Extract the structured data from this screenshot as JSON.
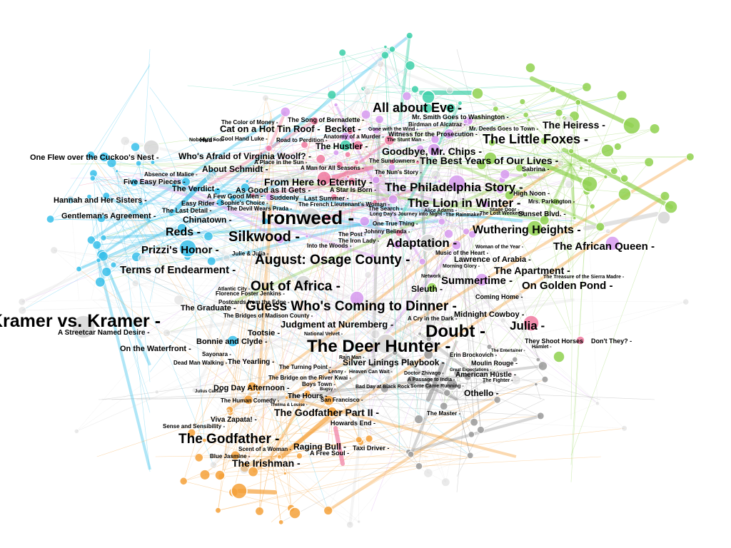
{
  "graph": {
    "palette": {
      "blue": "#38c0ea",
      "pink": "#f07aa0",
      "green": "#8fd14f",
      "orange": "#f5a13a",
      "purple": "#d79af0",
      "teal": "#3ccfa8",
      "gray": "#9a9a9a",
      "lightgray": "#d6d6d6"
    },
    "labels": [
      {
        "text": "Kramer vs. Kramer -",
        "tier": "xl"
      },
      {
        "text": "Ironweed -",
        "tier": "xl"
      },
      {
        "text": "The Deer Hunter -",
        "tier": "xl"
      },
      {
        "text": "Doubt -",
        "tier": "xl"
      },
      {
        "text": "The Godfather -",
        "tier": "l"
      },
      {
        "text": "Silkwood -",
        "tier": "l"
      },
      {
        "text": "August: Osage County -",
        "tier": "l"
      },
      {
        "text": "Out of Africa -",
        "tier": "l"
      },
      {
        "text": "Guess Who's Coming to Dinner -",
        "tier": "l"
      },
      {
        "text": "All about Eve -",
        "tier": "l"
      },
      {
        "text": "The Little Foxes -",
        "tier": "l"
      },
      {
        "text": "The Philadelphia Story -",
        "tier": "l"
      },
      {
        "text": "The Lion in Winter -",
        "tier": "l"
      },
      {
        "text": "Adaptation -",
        "tier": "l"
      },
      {
        "text": "Julia -",
        "tier": "l"
      },
      {
        "text": "Reds -",
        "tier": "m"
      },
      {
        "text": "Prizzi's Honor -",
        "tier": "m"
      },
      {
        "text": "Terms of Endearment -",
        "tier": "m"
      },
      {
        "text": "Wuthering Heights -",
        "tier": "m"
      },
      {
        "text": "The African Queen -",
        "tier": "m"
      },
      {
        "text": "On Golden Pond -",
        "tier": "m"
      },
      {
        "text": "Summertime -",
        "tier": "m"
      },
      {
        "text": "The Apartment -",
        "tier": "m"
      },
      {
        "text": "The Heiress -",
        "tier": "m"
      },
      {
        "text": "Goodbye, Mr. Chips -",
        "tier": "m"
      },
      {
        "text": "The Best Years of Our Lives -",
        "tier": "m"
      },
      {
        "text": "From Here to Eternity -",
        "tier": "m"
      },
      {
        "text": "The Godfather Part II -",
        "tier": "m"
      },
      {
        "text": "The Irishman -",
        "tier": "m"
      },
      {
        "text": "Judgment at Nuremberg -",
        "tier": "m"
      },
      {
        "text": "Cat on a Hot Tin Roof -",
        "tier": "m"
      },
      {
        "text": "Becket -",
        "tier": "m"
      },
      {
        "text": "The Hustler -",
        "tier": "s"
      },
      {
        "text": "Who's Afraid of Virginia Woolf? -",
        "tier": "s"
      },
      {
        "text": "One Flew over the Cuckoo's Nest -",
        "tier": "s"
      },
      {
        "text": "About Schmidt -",
        "tier": "s"
      },
      {
        "text": "Chinatown -",
        "tier": "s"
      },
      {
        "text": "The Verdict -",
        "tier": "s"
      },
      {
        "text": "As Good as It Gets -",
        "tier": "s"
      },
      {
        "text": "Hannah and Her Sisters -",
        "tier": "s"
      },
      {
        "text": "Gentleman's Agreement -",
        "tier": "s"
      },
      {
        "text": "Five Easy Pieces -",
        "tier": "s"
      },
      {
        "text": "Sleuth -",
        "tier": "s"
      },
      {
        "text": "The Graduate -",
        "tier": "s"
      },
      {
        "text": "Tootsie -",
        "tier": "s"
      },
      {
        "text": "Bonnie and Clyde -",
        "tier": "s"
      },
      {
        "text": "On the Waterfront -",
        "tier": "s"
      },
      {
        "text": "A Streetcar Named Desire -",
        "tier": "s"
      },
      {
        "text": "Silver Linings Playbook -",
        "tier": "s"
      },
      {
        "text": "Dog Day Afternoon -",
        "tier": "s"
      },
      {
        "text": "Raging Bull -",
        "tier": "s"
      },
      {
        "text": "Othello -",
        "tier": "s"
      },
      {
        "text": "Midnight Cowboy -",
        "tier": "s"
      },
      {
        "text": "Sunset Blvd. -",
        "tier": "s"
      },
      {
        "text": "Lawrence of Arabia -",
        "tier": "s"
      },
      {
        "text": "The Hours -",
        "tier": "s"
      },
      {
        "text": "Viva Zapata! -",
        "tier": "s"
      },
      {
        "text": "The Yearling -",
        "tier": "s"
      },
      {
        "text": "American Hustle -",
        "tier": "s"
      },
      {
        "text": "Moulin Rouge -",
        "tier": "s"
      },
      {
        "text": "Don't They? -",
        "tier": "s"
      },
      {
        "text": "They Shoot Horses",
        "tier": "s"
      },
      {
        "text": "Coming Home -",
        "tier": "s"
      },
      {
        "text": "High Noon -",
        "tier": "s"
      },
      {
        "text": "Sabrina -",
        "tier": "s"
      },
      {
        "text": "Mrs. Parkington -",
        "tier": "s"
      },
      {
        "text": "Easy Rider -",
        "tier": "s"
      },
      {
        "text": "Absence of Malice -",
        "tier": "s"
      },
      {
        "text": "A Few Good Men -",
        "tier": "s"
      },
      {
        "text": "The Last Detail -",
        "tier": "s"
      },
      {
        "text": "Last Summer -",
        "tier": "s"
      },
      {
        "text": "A Star Is Born -",
        "tier": "s"
      },
      {
        "text": "Howards End -",
        "tier": "s"
      },
      {
        "text": "Taxi Driver -",
        "tier": "s"
      },
      {
        "text": "A Free Soul -",
        "tier": "s"
      },
      {
        "text": "Sense and Sensibility -",
        "tier": "s"
      },
      {
        "text": "Hud -",
        "tier": "s"
      },
      {
        "text": "Mr. Smith Goes to Washington -",
        "tier": "s"
      },
      {
        "text": "The Song of Bernadette -",
        "tier": "s"
      },
      {
        "text": "Witness for the Prosecution -",
        "tier": "s"
      },
      {
        "text": "Boys Town -",
        "tier": "s"
      },
      {
        "text": "San Francisco -",
        "tier": "s"
      },
      {
        "text": "The Turning Point -",
        "tier": "s"
      },
      {
        "text": "The Bridge on the River Kwai -",
        "tier": "s"
      },
      {
        "text": "The Master -",
        "tier": "s"
      },
      {
        "text": "Erin Brockovich -",
        "tier": "s"
      },
      {
        "text": "A Cry in the Dark -",
        "tier": "s"
      },
      {
        "text": "The Bridges of Madison County -",
        "tier": "s"
      },
      {
        "text": "Postcards from the Edge -",
        "tier": "s"
      },
      {
        "text": "Florence Foster Jenkins -",
        "tier": "s"
      },
      {
        "text": "Sayonara -",
        "tier": "s"
      },
      {
        "text": "Dead Man Walking -",
        "tier": "s"
      },
      {
        "text": "The Human Comedy -",
        "tier": "s"
      },
      {
        "text": "Scent of a Woman -",
        "tier": "s"
      },
      {
        "text": "Blue Jasmine -",
        "tier": "s"
      },
      {
        "text": "The Color of Money -",
        "tier": "s"
      },
      {
        "text": "Cool Hand Luke -",
        "tier": "s"
      },
      {
        "text": "Anatomy of a Murder -",
        "tier": "s"
      },
      {
        "text": "Road to Perdition -",
        "tier": "s"
      },
      {
        "text": "A Place in the Sun -",
        "tier": "s"
      },
      {
        "text": "A Man for All Seasons -",
        "tier": "s"
      },
      {
        "text": "The Nun's Story -",
        "tier": "s"
      },
      {
        "text": "The Sundowners -",
        "tier": "s"
      },
      {
        "text": "Birdman of Alcatraz -",
        "tier": "s"
      },
      {
        "text": "Mr. Deeds Goes to Town -",
        "tier": "s"
      },
      {
        "text": "Gone with the Wind -",
        "tier": "s"
      },
      {
        "text": "The Stunt Man -",
        "tier": "s"
      },
      {
        "text": "Nobody's Fool -",
        "tier": "s"
      },
      {
        "text": "Sophie's Choice -",
        "tier": "s"
      },
      {
        "text": "The Devil Wears Prada -",
        "tier": "s"
      },
      {
        "text": "Suddenly",
        "tier": "s"
      },
      {
        "text": "The French Lieutenant's Woman -",
        "tier": "s"
      },
      {
        "text": "The Search -",
        "tier": "s"
      },
      {
        "text": "Long Day's Journey into Night -",
        "tier": "s"
      },
      {
        "text": "One True Thing -",
        "tier": "s"
      },
      {
        "text": "Johnny Belinda -",
        "tier": "s"
      },
      {
        "text": "The Post -",
        "tier": "s"
      },
      {
        "text": "The Iron Lady -",
        "tier": "s"
      },
      {
        "text": "Into the Woods -",
        "tier": "s"
      },
      {
        "text": "Julie & Julia -",
        "tier": "s"
      },
      {
        "text": "Music of the Heart -",
        "tier": "s"
      },
      {
        "text": "Woman of the Year -",
        "tier": "s"
      },
      {
        "text": "Morning Glory -",
        "tier": "s"
      },
      {
        "text": "Network -",
        "tier": "s"
      },
      {
        "text": "Alice Adams -",
        "tier": "s"
      },
      {
        "text": "Stage Door -",
        "tier": "s"
      },
      {
        "text": "The Rainmaker -",
        "tier": "s"
      },
      {
        "text": "The Lost Weekend -",
        "tier": "s"
      },
      {
        "text": "Atlantic City -",
        "tier": "s"
      },
      {
        "text": "National Velvet -",
        "tier": "s"
      },
      {
        "text": "Rain Man -",
        "tier": "s"
      },
      {
        "text": "Lenny -",
        "tier": "s"
      },
      {
        "text": "Heaven Can Wait -",
        "tier": "s"
      },
      {
        "text": "Doctor Zhivago -",
        "tier": "s"
      },
      {
        "text": "A Passage to India -",
        "tier": "s"
      },
      {
        "text": "Some Came Running -",
        "tier": "s"
      },
      {
        "text": "Bad Day at Black Rock -",
        "tier": "s"
      },
      {
        "text": "Great Expectations -",
        "tier": "s"
      },
      {
        "text": "The Fighter -",
        "tier": "s"
      },
      {
        "text": "Hamlet -",
        "tier": "s"
      },
      {
        "text": "The Treasure of the Sierra Madre -",
        "tier": "s"
      },
      {
        "text": "The Entertainer -",
        "tier": "s"
      },
      {
        "text": "Thelma & Louise -",
        "tier": "s"
      },
      {
        "text": "Julius Caesar -",
        "tier": "s"
      },
      {
        "text": "Bugsy -",
        "tier": "s"
      }
    ]
  }
}
